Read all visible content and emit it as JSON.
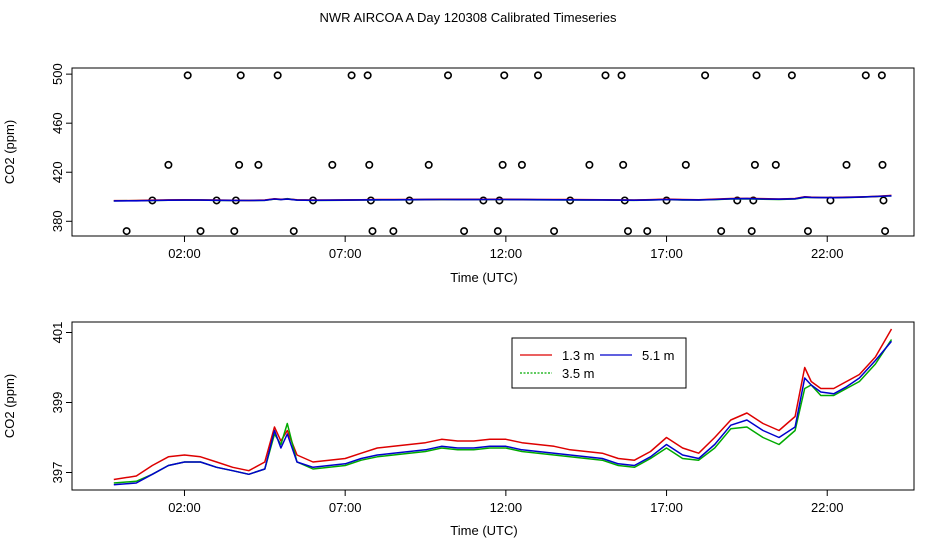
{
  "figure": {
    "title": "NWR AIRCOA A  Day 120308  Calibrated Timeseries"
  },
  "chart_data": [
    {
      "type": "line+scatter",
      "panel": "top",
      "xlabel": "Time (UTC)",
      "ylabel": "CO2 (ppm)",
      "xlim": [
        -1.5,
        24.7
      ],
      "ylim": [
        368,
        505
      ],
      "xticks": [
        2,
        7,
        12,
        17,
        22
      ],
      "xtick_labels": [
        "02:00",
        "07:00",
        "12:00",
        "17:00",
        "22:00"
      ],
      "yticks": [
        380,
        420,
        460,
        500
      ],
      "ytick_labels": [
        "380",
        "420",
        "460",
        "500"
      ],
      "grid": false,
      "legend": "none",
      "calibration_points": {
        "marker": "open-circle",
        "color": "#000000",
        "points": [
          [
            0.2,
            372
          ],
          [
            1.0,
            397
          ],
          [
            1.5,
            426
          ],
          [
            2.1,
            499
          ],
          [
            2.5,
            372
          ],
          [
            3.0,
            397
          ],
          [
            3.55,
            372
          ],
          [
            3.6,
            397
          ],
          [
            3.7,
            426
          ],
          [
            3.75,
            499
          ],
          [
            4.3,
            426
          ],
          [
            4.9,
            499
          ],
          [
            5.4,
            372
          ],
          [
            6.0,
            397
          ],
          [
            6.6,
            426
          ],
          [
            7.2,
            499
          ],
          [
            7.7,
            499
          ],
          [
            7.75,
            426
          ],
          [
            7.8,
            397
          ],
          [
            7.85,
            372
          ],
          [
            8.5,
            372
          ],
          [
            9.0,
            397
          ],
          [
            9.6,
            426
          ],
          [
            10.2,
            499
          ],
          [
            10.7,
            372
          ],
          [
            11.3,
            397
          ],
          [
            11.75,
            372
          ],
          [
            11.8,
            397
          ],
          [
            11.9,
            426
          ],
          [
            11.95,
            499
          ],
          [
            12.5,
            426
          ],
          [
            13.0,
            499
          ],
          [
            13.5,
            372
          ],
          [
            14.0,
            397
          ],
          [
            14.6,
            426
          ],
          [
            15.1,
            499
          ],
          [
            15.6,
            499
          ],
          [
            15.65,
            426
          ],
          [
            15.7,
            397
          ],
          [
            15.8,
            372
          ],
          [
            16.4,
            372
          ],
          [
            17.0,
            397
          ],
          [
            17.6,
            426
          ],
          [
            18.2,
            499
          ],
          [
            18.7,
            372
          ],
          [
            19.2,
            397
          ],
          [
            19.65,
            372
          ],
          [
            19.7,
            397
          ],
          [
            19.75,
            426
          ],
          [
            19.8,
            499
          ],
          [
            20.4,
            426
          ],
          [
            20.9,
            499
          ],
          [
            21.4,
            372
          ],
          [
            22.1,
            397
          ],
          [
            22.6,
            426
          ],
          [
            23.2,
            499
          ],
          [
            23.7,
            499
          ],
          [
            23.72,
            426
          ],
          [
            23.75,
            397
          ],
          [
            23.8,
            372
          ]
        ]
      },
      "series": [
        {
          "name": "1.3 m",
          "color": "#dd0000"
        },
        {
          "name": "3.5 m",
          "color": "#00aa00"
        },
        {
          "name": "5.1 m",
          "color": "#0000cc"
        }
      ]
    },
    {
      "type": "line",
      "panel": "bottom",
      "xlabel": "Time (UTC)",
      "ylabel": "CO2 (ppm)",
      "xlim": [
        -1.5,
        24.7
      ],
      "ylim": [
        396.5,
        401.3
      ],
      "xticks": [
        2,
        7,
        12,
        17,
        22
      ],
      "xtick_labels": [
        "02:00",
        "07:00",
        "12:00",
        "17:00",
        "22:00"
      ],
      "yticks": [
        397,
        399,
        401
      ],
      "ytick_labels": [
        "397",
        "399",
        "401"
      ],
      "grid": false,
      "legend": "top-right",
      "legend_entries": [
        {
          "name": "1.3 m",
          "color": "#dd0000"
        },
        {
          "name": "5.1 m",
          "color": "#0000cc"
        },
        {
          "name": "3.5 m",
          "color": "#00aa00"
        }
      ],
      "series": [
        {
          "name": "1.3 m",
          "color": "#dd0000",
          "x": [
            -0.2,
            0.5,
            1.0,
            1.5,
            2.0,
            2.5,
            3.0,
            3.5,
            4.0,
            4.5,
            4.8,
            5.0,
            5.2,
            5.5,
            6.0,
            6.5,
            7.0,
            7.5,
            8.0,
            8.5,
            9.0,
            9.5,
            10.0,
            10.5,
            11.0,
            11.5,
            12.0,
            12.5,
            13.0,
            13.5,
            14.0,
            14.5,
            15.0,
            15.5,
            16.0,
            16.5,
            17.0,
            17.5,
            18.0,
            18.5,
            19.0,
            19.5,
            20.0,
            20.5,
            21.0,
            21.3,
            21.5,
            21.8,
            22.2,
            22.6,
            23.0,
            23.5,
            24.0
          ],
          "y": [
            396.8,
            396.9,
            397.2,
            397.45,
            397.5,
            397.45,
            397.3,
            397.15,
            397.05,
            397.3,
            398.3,
            397.9,
            398.2,
            397.5,
            397.3,
            397.35,
            397.4,
            397.55,
            397.7,
            397.75,
            397.8,
            397.85,
            397.95,
            397.9,
            397.9,
            397.95,
            397.95,
            397.85,
            397.8,
            397.75,
            397.65,
            397.6,
            397.55,
            397.4,
            397.35,
            397.6,
            398.0,
            397.7,
            397.55,
            398.0,
            398.5,
            398.7,
            398.4,
            398.2,
            398.6,
            400.0,
            399.6,
            399.4,
            399.4,
            399.6,
            399.8,
            400.3,
            401.1
          ]
        },
        {
          "name": "3.5 m",
          "color": "#00aa00",
          "x": [
            -0.2,
            0.5,
            1.0,
            1.5,
            2.0,
            2.5,
            3.0,
            3.5,
            4.0,
            4.5,
            4.8,
            5.0,
            5.2,
            5.5,
            6.0,
            6.5,
            7.0,
            7.5,
            8.0,
            8.5,
            9.0,
            9.5,
            10.0,
            10.5,
            11.0,
            11.5,
            12.0,
            12.5,
            13.0,
            13.5,
            14.0,
            14.5,
            15.0,
            15.5,
            16.0,
            16.5,
            17.0,
            17.5,
            18.0,
            18.5,
            19.0,
            19.5,
            20.0,
            20.5,
            21.0,
            21.3,
            21.5,
            21.8,
            22.2,
            22.6,
            23.0,
            23.5,
            24.0
          ],
          "y": [
            396.7,
            396.75,
            396.95,
            397.2,
            397.3,
            397.3,
            397.15,
            397.05,
            396.95,
            397.1,
            398.1,
            397.8,
            398.4,
            397.3,
            397.1,
            397.15,
            397.2,
            397.35,
            397.45,
            397.5,
            397.55,
            397.6,
            397.7,
            397.65,
            397.65,
            397.7,
            397.7,
            397.6,
            397.55,
            397.5,
            397.45,
            397.4,
            397.35,
            397.2,
            397.15,
            397.4,
            397.7,
            397.4,
            397.35,
            397.7,
            398.25,
            398.3,
            398.0,
            397.8,
            398.2,
            399.4,
            399.5,
            399.2,
            399.2,
            399.4,
            399.6,
            400.1,
            400.8
          ]
        },
        {
          "name": "5.1 m",
          "color": "#0000cc",
          "x": [
            -0.2,
            0.5,
            1.0,
            1.5,
            2.0,
            2.5,
            3.0,
            3.5,
            4.0,
            4.5,
            4.8,
            5.0,
            5.2,
            5.5,
            6.0,
            6.5,
            7.0,
            7.5,
            8.0,
            8.5,
            9.0,
            9.5,
            10.0,
            10.5,
            11.0,
            11.5,
            12.0,
            12.5,
            13.0,
            13.5,
            14.0,
            14.5,
            15.0,
            15.5,
            16.0,
            16.5,
            17.0,
            17.5,
            18.0,
            18.5,
            19.0,
            19.5,
            20.0,
            20.5,
            21.0,
            21.3,
            21.5,
            21.8,
            22.2,
            22.6,
            23.0,
            23.5,
            24.0
          ],
          "y": [
            396.65,
            396.7,
            396.95,
            397.2,
            397.3,
            397.3,
            397.15,
            397.05,
            396.95,
            397.1,
            398.2,
            397.7,
            398.1,
            397.3,
            397.15,
            397.2,
            397.25,
            397.4,
            397.5,
            397.55,
            397.6,
            397.65,
            397.75,
            397.7,
            397.7,
            397.75,
            397.75,
            397.65,
            397.6,
            397.55,
            397.5,
            397.45,
            397.4,
            397.25,
            397.2,
            397.45,
            397.8,
            397.5,
            397.4,
            397.8,
            398.35,
            398.5,
            398.2,
            398.0,
            398.3,
            399.7,
            399.5,
            399.3,
            399.25,
            399.45,
            399.7,
            400.2,
            400.75
          ]
        }
      ]
    }
  ]
}
